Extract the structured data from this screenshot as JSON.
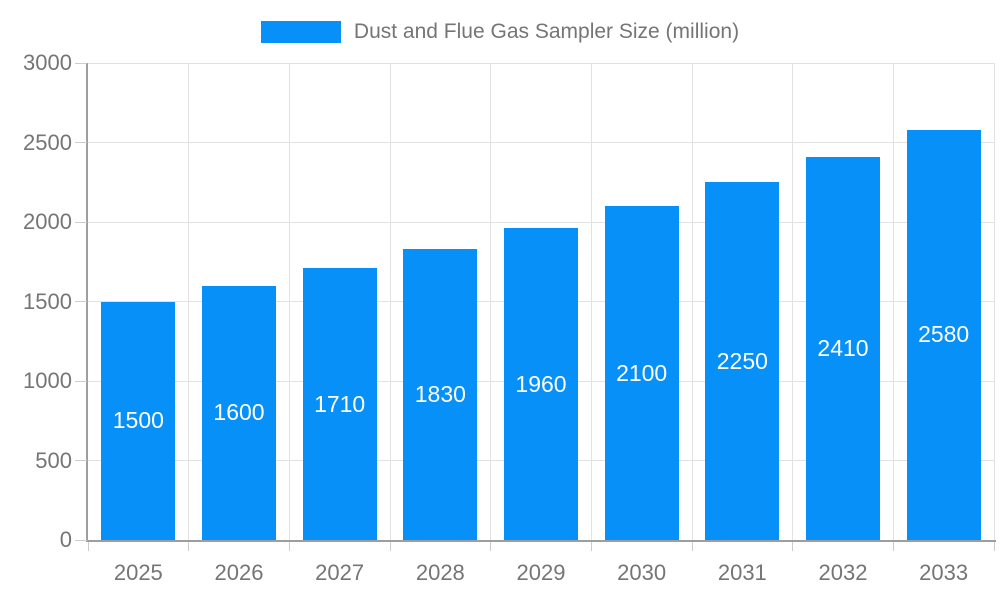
{
  "legend": {
    "label": "Dust and Flue Gas Sampler Size (million)"
  },
  "colors": {
    "bar": "#0690F8",
    "grid": "#E2E2E2",
    "axis": "#9E9E9E",
    "tick": "#CCCCCC",
    "tick_text": "#757575",
    "bar_label_text": "#FFFFFF",
    "background": "#FFFFFF"
  },
  "chart_data": {
    "type": "bar",
    "title": "Dust and Flue Gas Sampler Size (million)",
    "categories": [
      "2025",
      "2026",
      "2027",
      "2028",
      "2029",
      "2030",
      "2031",
      "2032",
      "2033"
    ],
    "values": [
      1500,
      1600,
      1710,
      1830,
      1960,
      2100,
      2250,
      2410,
      2580
    ],
    "xlabel": "",
    "ylabel": "",
    "ylim": [
      0,
      3000
    ],
    "yticks": [
      0,
      500,
      1000,
      1500,
      2000,
      2500,
      3000
    ],
    "grid": true,
    "legend_position": "top",
    "bar_labels_position": "inside-center"
  }
}
